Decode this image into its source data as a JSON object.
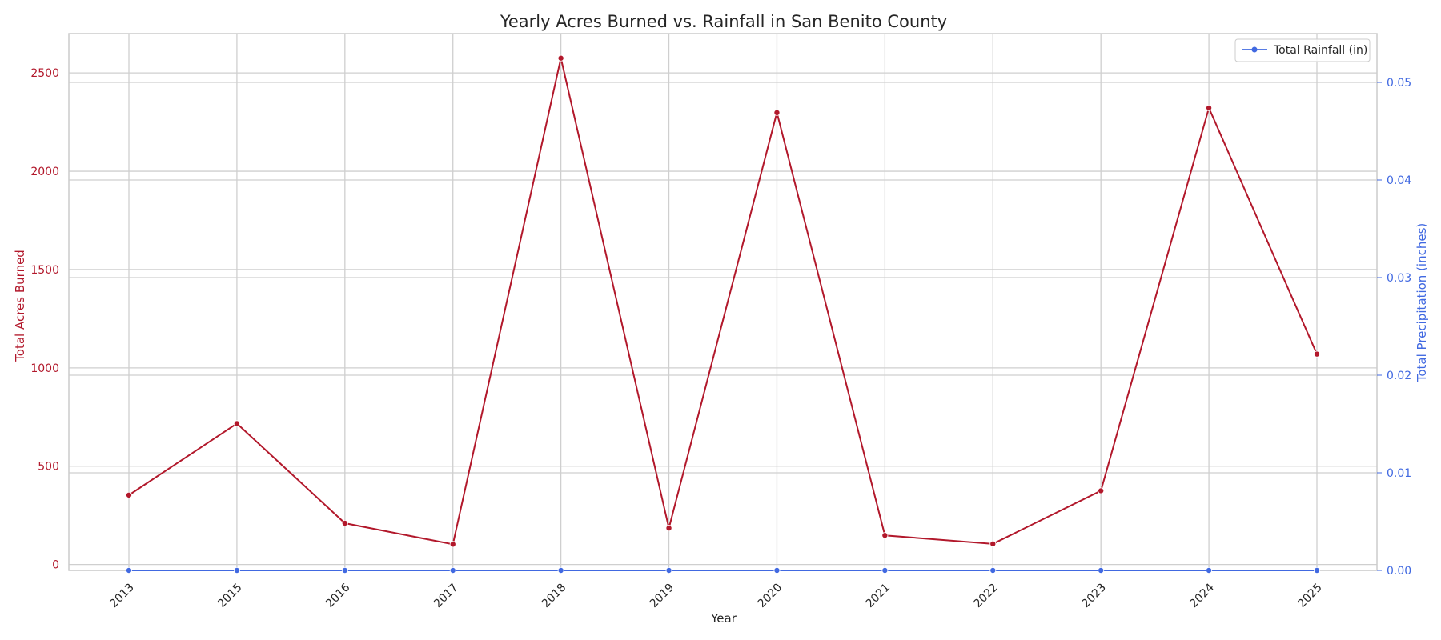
{
  "chart_data": {
    "type": "line",
    "title": "Yearly Acres Burned vs. Rainfall in San Benito County",
    "xlabel": "Year",
    "ylabel_left": "Total Acres Burned",
    "ylabel_right": "Total Precipitation (inches)",
    "categories": [
      "2013",
      "2015",
      "2016",
      "2017",
      "2018",
      "2019",
      "2020",
      "2021",
      "2022",
      "2023",
      "2024",
      "2025"
    ],
    "series": [
      {
        "name": "",
        "axis": "left",
        "color": "#b2182b",
        "values": [
          353,
          717,
          210,
          103,
          2575,
          185,
          2298,
          148,
          105,
          375,
          2322,
          1070
        ]
      },
      {
        "name": "Total Rainfall (in)",
        "axis": "right",
        "color": "#4169e1",
        "values": [
          0,
          0,
          0,
          0,
          0,
          0,
          0,
          0,
          0,
          0,
          0,
          0
        ]
      }
    ],
    "ylim_left": [
      -30,
      2700
    ],
    "yticks_left": [
      0,
      500,
      1000,
      1500,
      2000,
      2500
    ],
    "ylim_right": [
      0,
      0.055
    ],
    "yticks_right": [
      0.0,
      0.01,
      0.02,
      0.03,
      0.04,
      0.05
    ],
    "yticks_right_labels": [
      "0.00",
      "0.01",
      "0.02",
      "0.03",
      "0.04",
      "0.05"
    ],
    "grid": true,
    "legend": "top-right",
    "left_axis_color": "#b2182b",
    "right_axis_color": "#4169e1"
  }
}
